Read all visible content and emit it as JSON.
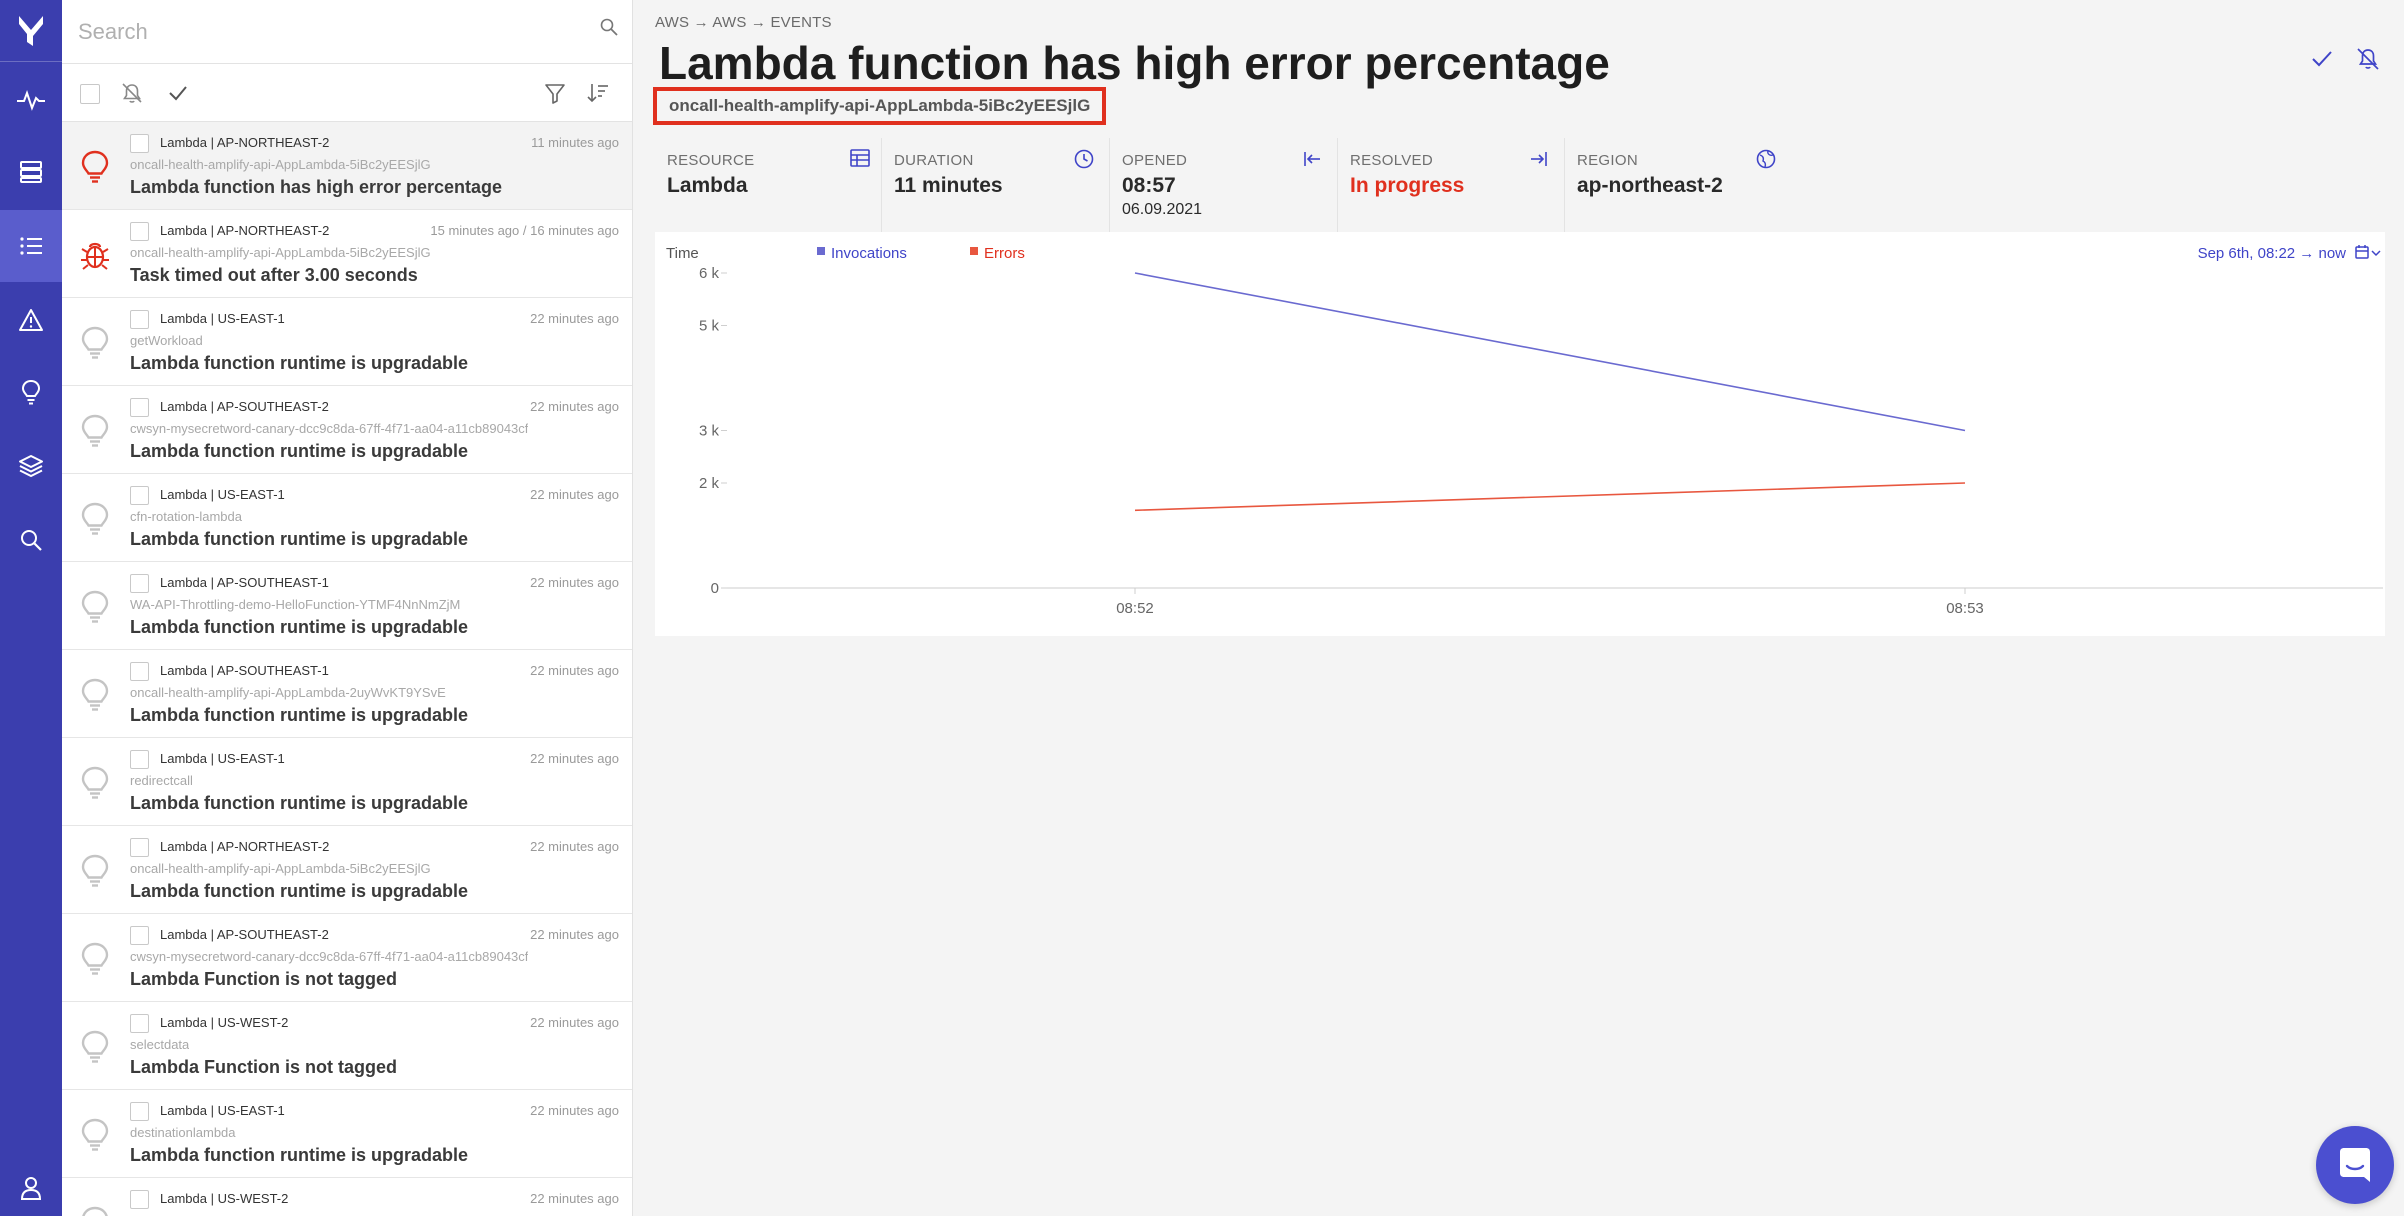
{
  "colors": {
    "nav_bg": "#3b3eae",
    "accent": "#3f44c8",
    "error": "#e0301e",
    "invocations": "#6a6ad0",
    "errors": "#e8573f"
  },
  "nav": {
    "items": [
      {
        "name": "logo-icon"
      },
      {
        "name": "activity-icon"
      },
      {
        "name": "servers-icon"
      },
      {
        "name": "list-icon",
        "active": true
      },
      {
        "name": "warning-icon"
      },
      {
        "name": "lightbulb-icon"
      },
      {
        "name": "layers-icon"
      },
      {
        "name": "search-icon"
      },
      {
        "name": "user-icon"
      }
    ]
  },
  "search": {
    "placeholder": "Search",
    "value": ""
  },
  "events": [
    {
      "title": "Lambda | AP-NORTHEAST-2",
      "time": "11 minutes ago",
      "name": "oncall-health-amplify-api-AppLambda-5iBc2yEESjlG",
      "message": "Lambda function has high error percentage",
      "icon": "lightbulb-red",
      "selected": true
    },
    {
      "title": "Lambda | AP-NORTHEAST-2",
      "time": "15 minutes ago / 16 minutes ago",
      "name": "oncall-health-amplify-api-AppLambda-5iBc2yEESjlG",
      "message": "Task timed out after 3.00 seconds",
      "icon": "bug-red"
    },
    {
      "title": "Lambda | US-EAST-1",
      "time": "22 minutes ago",
      "name": "getWorkload",
      "message": "Lambda function runtime is upgradable",
      "icon": "lightbulb-grey"
    },
    {
      "title": "Lambda | AP-SOUTHEAST-2",
      "time": "22 minutes ago",
      "name": "cwsyn-mysecretword-canary-dcc9c8da-67ff-4f71-aa04-a11cb89043cf",
      "message": "Lambda function runtime is upgradable",
      "icon": "lightbulb-grey"
    },
    {
      "title": "Lambda | US-EAST-1",
      "time": "22 minutes ago",
      "name": "cfn-rotation-lambda",
      "message": "Lambda function runtime is upgradable",
      "icon": "lightbulb-grey"
    },
    {
      "title": "Lambda | AP-SOUTHEAST-1",
      "time": "22 minutes ago",
      "name": "WA-API-Throttling-demo-HelloFunction-YTMF4NnNmZjM",
      "message": "Lambda function runtime is upgradable",
      "icon": "lightbulb-grey"
    },
    {
      "title": "Lambda | AP-SOUTHEAST-1",
      "time": "22 minutes ago",
      "name": "oncall-health-amplify-api-AppLambda-2uyWvKT9YSvE",
      "message": "Lambda function runtime is upgradable",
      "icon": "lightbulb-grey"
    },
    {
      "title": "Lambda | US-EAST-1",
      "time": "22 minutes ago",
      "name": "redirectcall",
      "message": "Lambda function runtime is upgradable",
      "icon": "lightbulb-grey"
    },
    {
      "title": "Lambda | AP-NORTHEAST-2",
      "time": "22 minutes ago",
      "name": "oncall-health-amplify-api-AppLambda-5iBc2yEESjlG",
      "message": "Lambda function runtime is upgradable",
      "icon": "lightbulb-grey"
    },
    {
      "title": "Lambda | AP-SOUTHEAST-2",
      "time": "22 minutes ago",
      "name": "cwsyn-mysecretword-canary-dcc9c8da-67ff-4f71-aa04-a11cb89043cf",
      "message": "Lambda Function is not tagged",
      "icon": "lightbulb-grey"
    },
    {
      "title": "Lambda | US-WEST-2",
      "time": "22 minutes ago",
      "name": "selectdata",
      "message": "Lambda Function is not tagged",
      "icon": "lightbulb-grey"
    },
    {
      "title": "Lambda | US-EAST-1",
      "time": "22 minutes ago",
      "name": "destinationlambda",
      "message": "Lambda function runtime is upgradable",
      "icon": "lightbulb-grey"
    },
    {
      "title": "Lambda | US-WEST-2",
      "time": "22 minutes ago",
      "name": "",
      "message": "",
      "icon": "lightbulb-grey"
    }
  ],
  "main": {
    "breadcrumb": "AWS → AWS → EVENTS",
    "title": "Lambda function has high error percentage",
    "resource_id": "oncall-health-amplify-api-AppLambda-5iBc2yEESjlG",
    "stats": [
      {
        "label": "RESOURCE",
        "value": "Lambda",
        "sub": "",
        "icon": "table-icon"
      },
      {
        "label": "DURATION",
        "value": "11 minutes",
        "sub": "",
        "icon": "clock-icon"
      },
      {
        "label": "OPENED",
        "value": "08:57",
        "sub": "06.09.2021",
        "icon": "arrow-left-bar-icon"
      },
      {
        "label": "RESOLVED",
        "value": "In progress",
        "sub": "",
        "icon": "arrow-right-bar-icon",
        "red": true
      },
      {
        "label": "REGION",
        "value": "ap-northeast-2",
        "sub": "",
        "icon": "globe-icon"
      }
    ]
  },
  "chart_data": {
    "type": "line",
    "title": "",
    "xlabel": "Time",
    "ylabel": "",
    "range_label": "Sep 6th, 08:22 → now",
    "legend_position": "top-left",
    "x": [
      "08:52",
      "08:53"
    ],
    "yticks": [
      0,
      2000,
      3000,
      5000,
      6000
    ],
    "ytick_labels": [
      "0",
      "2 k",
      "3 k",
      "5 k",
      "6 k"
    ],
    "ylim": [
      0,
      6400
    ],
    "grid": false,
    "series": [
      {
        "name": "Invocations",
        "values": [
          6000,
          3000
        ],
        "color": "#6a6ad0"
      },
      {
        "name": "Errors",
        "values": [
          1480,
          2000
        ],
        "color": "#e8573f"
      }
    ]
  }
}
